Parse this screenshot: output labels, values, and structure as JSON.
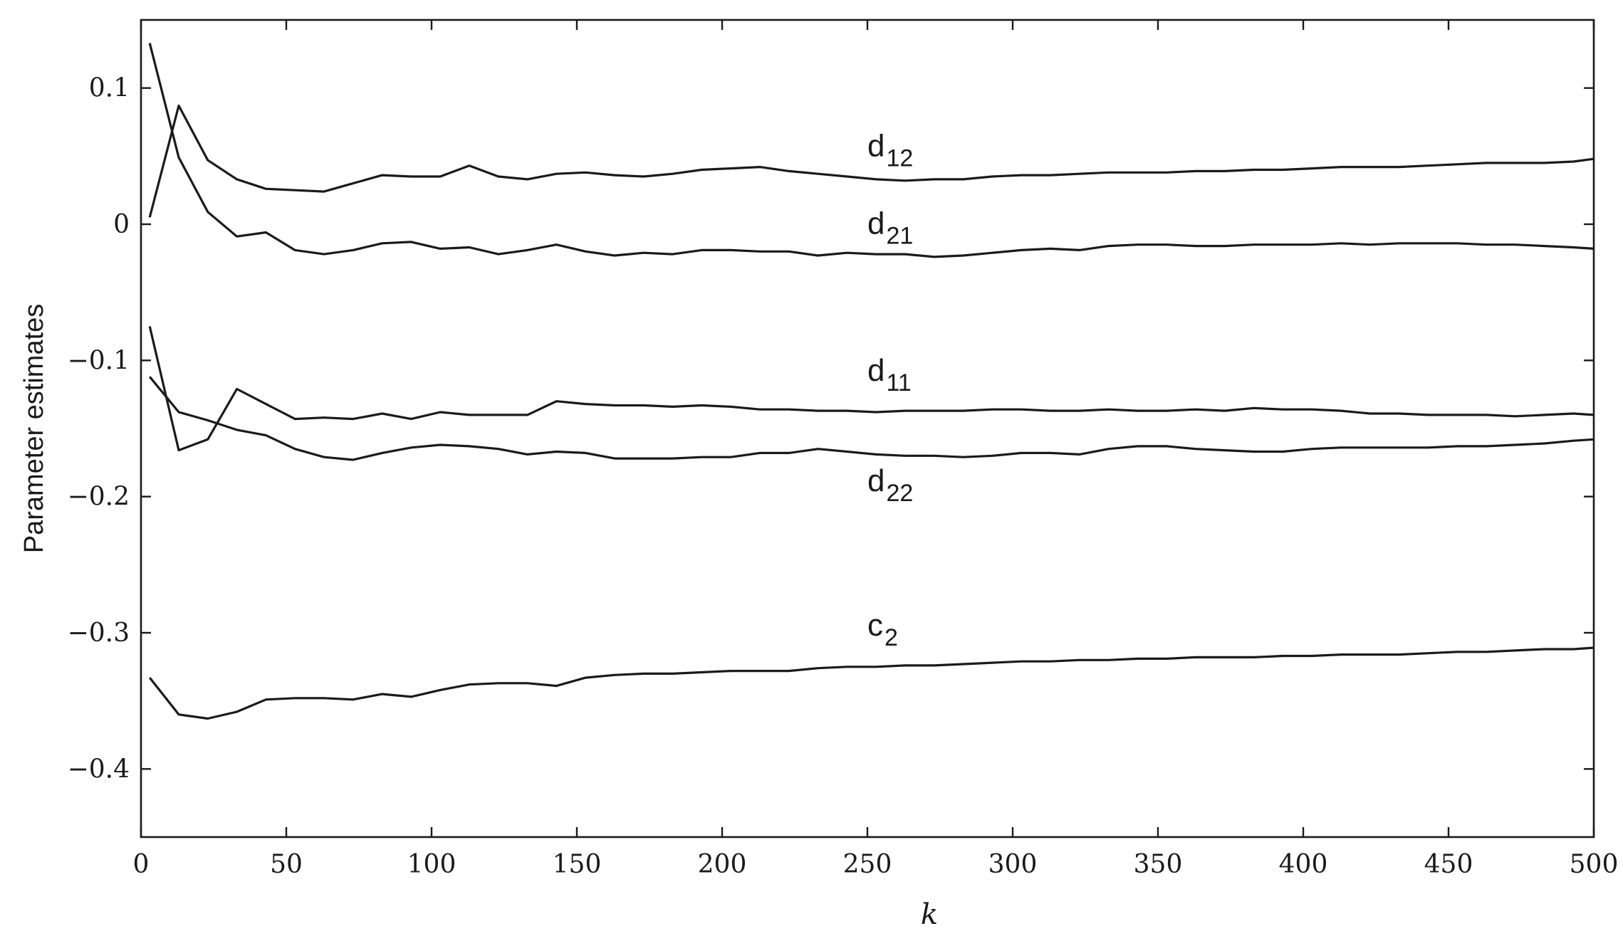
{
  "chart_data": {
    "type": "line",
    "title": "",
    "xlabel": "k",
    "ylabel": "Parameter estimates",
    "xlim": [
      0,
      500
    ],
    "ylim": [
      -0.45,
      0.15
    ],
    "x_ticks": [
      0,
      50,
      100,
      150,
      200,
      250,
      300,
      350,
      400,
      450,
      500
    ],
    "x_tick_labels": [
      "0",
      "50",
      "100",
      "150",
      "200",
      "250",
      "300",
      "350",
      "400",
      "450",
      "500"
    ],
    "y_ticks": [
      0.1,
      0,
      -0.1,
      -0.2,
      -0.3,
      -0.4
    ],
    "y_tick_labels": [
      "0.1",
      "0",
      "−0.1",
      "−0.2",
      "−0.3",
      "−0.4"
    ],
    "grid": false,
    "legend": "none",
    "x": [
      3,
      13,
      23,
      33,
      43,
      53,
      63,
      73,
      83,
      93,
      103,
      113,
      123,
      133,
      143,
      153,
      163,
      173,
      183,
      193,
      203,
      213,
      223,
      233,
      243,
      253,
      263,
      273,
      283,
      293,
      303,
      313,
      323,
      333,
      343,
      353,
      363,
      373,
      383,
      393,
      403,
      413,
      423,
      433,
      443,
      453,
      463,
      473,
      483,
      493,
      500
    ],
    "series": [
      {
        "label_main": "d",
        "label_sub": "12",
        "label_at": [
          250,
          0.05
        ],
        "values": [
          0.005,
          0.087,
          0.047,
          0.033,
          0.026,
          0.025,
          0.024,
          0.03,
          0.036,
          0.035,
          0.035,
          0.043,
          0.035,
          0.033,
          0.037,
          0.038,
          0.036,
          0.035,
          0.037,
          0.04,
          0.041,
          0.042,
          0.039,
          0.037,
          0.035,
          0.033,
          0.032,
          0.033,
          0.033,
          0.035,
          0.036,
          0.036,
          0.037,
          0.038,
          0.038,
          0.038,
          0.039,
          0.039,
          0.04,
          0.04,
          0.041,
          0.042,
          0.042,
          0.042,
          0.043,
          0.044,
          0.045,
          0.045,
          0.045,
          0.046,
          0.048
        ]
      },
      {
        "label_main": "d",
        "label_sub": "21",
        "label_at": [
          250,
          -0.007
        ],
        "values": [
          0.133,
          0.049,
          0.009,
          -0.009,
          -0.006,
          -0.019,
          -0.022,
          -0.019,
          -0.014,
          -0.013,
          -0.018,
          -0.017,
          -0.022,
          -0.019,
          -0.015,
          -0.02,
          -0.023,
          -0.021,
          -0.022,
          -0.019,
          -0.019,
          -0.02,
          -0.02,
          -0.023,
          -0.021,
          -0.022,
          -0.022,
          -0.024,
          -0.023,
          -0.021,
          -0.019,
          -0.018,
          -0.019,
          -0.016,
          -0.015,
          -0.015,
          -0.016,
          -0.016,
          -0.015,
          -0.015,
          -0.015,
          -0.014,
          -0.015,
          -0.014,
          -0.014,
          -0.014,
          -0.015,
          -0.015,
          -0.016,
          -0.017,
          -0.018
        ]
      },
      {
        "label_main": "d",
        "label_sub": "11",
        "label_at": [
          250,
          -0.115
        ],
        "values": [
          -0.075,
          -0.166,
          -0.158,
          -0.121,
          -0.132,
          -0.143,
          -0.142,
          -0.143,
          -0.139,
          -0.143,
          -0.138,
          -0.14,
          -0.14,
          -0.14,
          -0.13,
          -0.132,
          -0.133,
          -0.133,
          -0.134,
          -0.133,
          -0.134,
          -0.136,
          -0.136,
          -0.137,
          -0.137,
          -0.138,
          -0.137,
          -0.137,
          -0.137,
          -0.136,
          -0.136,
          -0.137,
          -0.137,
          -0.136,
          -0.137,
          -0.137,
          -0.136,
          -0.137,
          -0.135,
          -0.136,
          -0.136,
          -0.137,
          -0.139,
          -0.139,
          -0.14,
          -0.14,
          -0.14,
          -0.141,
          -0.14,
          -0.139,
          -0.14
        ]
      },
      {
        "label_main": "d",
        "label_sub": "22",
        "label_at": [
          250,
          -0.196
        ],
        "values": [
          -0.112,
          -0.138,
          -0.144,
          -0.151,
          -0.155,
          -0.165,
          -0.171,
          -0.173,
          -0.168,
          -0.164,
          -0.162,
          -0.163,
          -0.165,
          -0.169,
          -0.167,
          -0.168,
          -0.172,
          -0.172,
          -0.172,
          -0.171,
          -0.171,
          -0.168,
          -0.168,
          -0.165,
          -0.167,
          -0.169,
          -0.17,
          -0.17,
          -0.171,
          -0.17,
          -0.168,
          -0.168,
          -0.169,
          -0.165,
          -0.163,
          -0.163,
          -0.165,
          -0.166,
          -0.167,
          -0.167,
          -0.165,
          -0.164,
          -0.164,
          -0.164,
          -0.164,
          -0.163,
          -0.163,
          -0.162,
          -0.161,
          -0.159,
          -0.158
        ]
      },
      {
        "label_main": "c",
        "label_sub": "2",
        "label_at": [
          250,
          -0.302
        ],
        "values": [
          -0.333,
          -0.36,
          -0.363,
          -0.358,
          -0.349,
          -0.348,
          -0.348,
          -0.349,
          -0.345,
          -0.347,
          -0.342,
          -0.338,
          -0.337,
          -0.337,
          -0.339,
          -0.333,
          -0.331,
          -0.33,
          -0.33,
          -0.329,
          -0.328,
          -0.328,
          -0.328,
          -0.326,
          -0.325,
          -0.325,
          -0.324,
          -0.324,
          -0.323,
          -0.322,
          -0.321,
          -0.321,
          -0.32,
          -0.32,
          -0.319,
          -0.319,
          -0.318,
          -0.318,
          -0.318,
          -0.317,
          -0.317,
          -0.316,
          -0.316,
          -0.316,
          -0.315,
          -0.314,
          -0.314,
          -0.313,
          -0.312,
          -0.312,
          -0.311
        ]
      }
    ]
  }
}
